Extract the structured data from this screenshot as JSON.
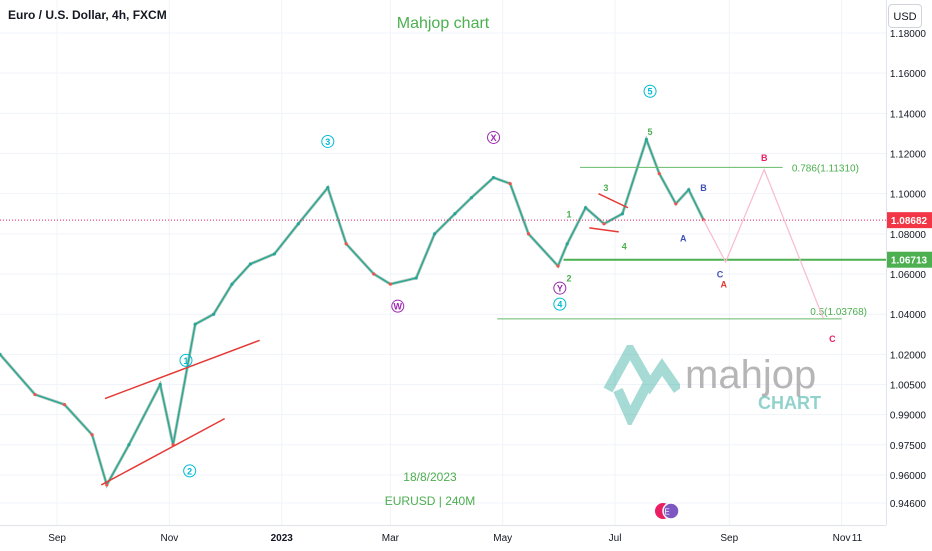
{
  "header": {
    "symbol_title": "Euro / U.S. Dollar, 4h, FXCM",
    "chart_name": "Mahjop chart",
    "currency_button": "USD"
  },
  "annotations": {
    "date": "18/8/2023",
    "pair": "EURUSD | 240M"
  },
  "logo": {
    "word": "mahjop",
    "sub": "CHART"
  },
  "chart_data": {
    "type": "line",
    "title": "Euro / U.S. Dollar, 4h, FXCM",
    "subtitle": "Mahjop chart",
    "y_ticks": [
      1.18,
      1.16,
      1.14,
      1.12,
      1.1,
      1.08,
      1.06,
      1.04,
      1.02,
      1.005,
      0.99,
      0.975,
      0.96,
      0.946
    ],
    "y_tick_labels": [
      "1.18000",
      "1.16000",
      "1.14000",
      "1.12000",
      "1.10000",
      "1.08000",
      "1.06000",
      "1.04000",
      "1.02000",
      "1.00500",
      "0.99000",
      "0.97500",
      "0.96000",
      "0.94600"
    ],
    "x_tick_labels": [
      "Sep",
      "Nov",
      "2023",
      "Mar",
      "May",
      "Jul",
      "Sep",
      "Nov",
      "11"
    ],
    "grid": true,
    "series": [
      {
        "x": [
          "2022-08-01",
          "2022-08-20",
          "2022-09-05",
          "2022-09-20",
          "2022-09-28",
          "2022-10-10",
          "2022-10-27",
          "2022-11-03",
          "2022-11-15",
          "2022-11-25",
          "2022-12-05",
          "2022-12-15",
          "2022-12-28",
          "2023-01-10",
          "2023-01-26",
          "2023-02-05",
          "2023-02-20",
          "2023-03-01",
          "2023-03-15",
          "2023-03-25",
          "2023-04-05",
          "2023-04-14",
          "2023-04-26",
          "2023-05-05",
          "2023-05-15",
          "2023-05-31",
          "2023-06-05",
          "2023-06-15",
          "2023-06-25",
          "2023-07-05",
          "2023-07-18",
          "2023-07-25",
          "2023-08-03",
          "2023-08-10",
          "2023-08-18"
        ],
        "values": [
          1.02,
          1.0,
          0.995,
          0.98,
          0.955,
          0.975,
          1.005,
          0.975,
          1.035,
          1.04,
          1.055,
          1.065,
          1.07,
          1.085,
          1.103,
          1.075,
          1.06,
          1.055,
          1.058,
          1.08,
          1.09,
          1.098,
          1.108,
          1.105,
          1.08,
          1.064,
          1.075,
          1.093,
          1.085,
          1.09,
          1.127,
          1.11,
          1.095,
          1.102,
          1.087
        ]
      }
    ],
    "last_price": 1.08682,
    "last_price_label": "1.08682",
    "horizontal_levels": [
      {
        "price": 1.06713,
        "label": "1.06713"
      },
      {
        "price": 1.1131,
        "label": "0.786(1.11310)"
      },
      {
        "price": 1.03768,
        "label": "0.5(1.03768)"
      }
    ],
    "projection": [
      {
        "x": "2023-08-18",
        "y": 1.087
      },
      {
        "x": "2023-08-30",
        "y": 1.066
      },
      {
        "x": "2023-09-20",
        "y": 1.112
      },
      {
        "x": "2023-10-22",
        "y": 1.038
      }
    ],
    "trendlines": [
      {
        "from": {
          "x": "2022-09-25",
          "y": 0.955
        },
        "to": {
          "x": "2022-12-01",
          "y": 0.988
        }
      },
      {
        "from": {
          "x": "2022-09-27",
          "y": 0.998
        },
        "to": {
          "x": "2022-12-20",
          "y": 1.027
        }
      },
      {
        "from": {
          "x": "2023-06-17",
          "y": 1.083
        },
        "to": {
          "x": "2023-07-03",
          "y": 1.081
        }
      },
      {
        "from": {
          "x": "2023-06-22",
          "y": 1.1
        },
        "to": {
          "x": "2023-07-08",
          "y": 1.093
        }
      }
    ],
    "wave_labels": [
      {
        "text": "1",
        "x": "2022-11-10",
        "y": 1.017,
        "color": "#00bcd4",
        "circled": true
      },
      {
        "text": "2",
        "x": "2022-11-12",
        "y": 0.962,
        "color": "#00bcd4",
        "circled": true
      },
      {
        "text": "3",
        "x": "2023-01-26",
        "y": 1.126,
        "color": "#00bcd4",
        "circled": true
      },
      {
        "text": "W",
        "x": "2023-03-05",
        "y": 1.044,
        "color": "#9c27b0",
        "circled": true
      },
      {
        "text": "X",
        "x": "2023-04-26",
        "y": 1.128,
        "color": "#9c27b0",
        "circled": true
      },
      {
        "text": "Y",
        "x": "2023-06-01",
        "y": 1.053,
        "color": "#9c27b0",
        "circled": true
      },
      {
        "text": "4",
        "x": "2023-06-01",
        "y": 1.045,
        "color": "#00bcd4",
        "circled": true
      },
      {
        "text": "5",
        "x": "2023-07-20",
        "y": 1.151,
        "color": "#00bcd4",
        "circled": true
      },
      {
        "text": "1",
        "x": "2023-06-06",
        "y": 1.09,
        "color": "#4caf50",
        "circled": false
      },
      {
        "text": "2",
        "x": "2023-06-06",
        "y": 1.058,
        "color": "#4caf50",
        "circled": false
      },
      {
        "text": "3",
        "x": "2023-06-26",
        "y": 1.103,
        "color": "#4caf50",
        "circled": false
      },
      {
        "text": "4",
        "x": "2023-07-06",
        "y": 1.074,
        "color": "#4caf50",
        "circled": false
      },
      {
        "text": "5",
        "x": "2023-07-20",
        "y": 1.131,
        "color": "#4caf50",
        "circled": false
      },
      {
        "text": "A",
        "x": "2023-08-07",
        "y": 1.078,
        "color": "#3f51b5",
        "circled": false
      },
      {
        "text": "B",
        "x": "2023-08-18",
        "y": 1.103,
        "color": "#3f51b5",
        "circled": false
      },
      {
        "text": "C",
        "x": "2023-08-27",
        "y": 1.06,
        "color": "#3f51b5",
        "circled": false
      },
      {
        "text": "A",
        "x": "2023-08-29",
        "y": 1.055,
        "color": "#e53935",
        "circled": false
      },
      {
        "text": "B",
        "x": "2023-09-20",
        "y": 1.118,
        "color": "#e91e63",
        "circled": false
      },
      {
        "text": "C",
        "x": "2023-10-27",
        "y": 1.028,
        "color": "#e91e63",
        "circled": false
      }
    ]
  }
}
